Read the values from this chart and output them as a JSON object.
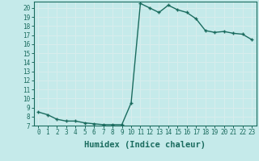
{
  "x": [
    0,
    1,
    2,
    3,
    4,
    5,
    6,
    7,
    8,
    9,
    10,
    11,
    12,
    13,
    14,
    15,
    16,
    17,
    18,
    19,
    20,
    21,
    22,
    23
  ],
  "y": [
    8.5,
    8.2,
    7.7,
    7.5,
    7.5,
    7.3,
    7.2,
    7.1,
    7.1,
    7.1,
    9.5,
    20.5,
    20.0,
    19.5,
    20.3,
    19.8,
    19.5,
    18.8,
    17.5,
    17.3,
    17.4,
    17.2,
    17.1,
    16.5
  ],
  "line_color": "#1a6b5e",
  "marker": "+",
  "marker_size": 3.5,
  "marker_edge_width": 1.0,
  "xlabel": "Humidex (Indice chaleur)",
  "xlim": [
    -0.5,
    23.5
  ],
  "ylim": [
    7,
    20.7
  ],
  "yticks": [
    7,
    8,
    9,
    10,
    11,
    12,
    13,
    14,
    15,
    16,
    17,
    18,
    19,
    20
  ],
  "xticks": [
    0,
    1,
    2,
    3,
    4,
    5,
    6,
    7,
    8,
    9,
    10,
    11,
    12,
    13,
    14,
    15,
    16,
    17,
    18,
    19,
    20,
    21,
    22,
    23
  ],
  "bg_color": "#c5eaea",
  "grid_color": "#d8eded",
  "tick_label_fontsize": 5.5,
  "xlabel_fontsize": 7.5,
  "line_width": 1.0,
  "spine_color": "#1a6b5e"
}
